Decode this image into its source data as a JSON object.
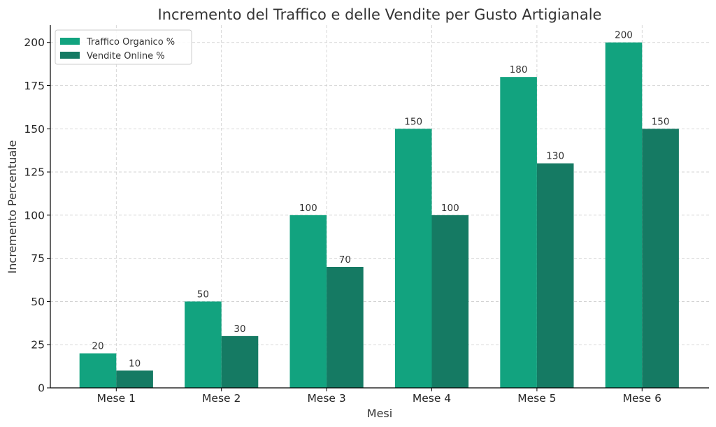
{
  "chart_data": {
    "type": "bar",
    "title": "Incremento del Traffico e delle Vendite per Gusto Artigianale",
    "xlabel": "Mesi",
    "ylabel": "Incremento Percentuale",
    "categories": [
      "Mese 1",
      "Mese 2",
      "Mese 3",
      "Mese 4",
      "Mese 5",
      "Mese 6"
    ],
    "series": [
      {
        "name": "Traffico Organico %",
        "values": [
          20,
          50,
          100,
          150,
          180,
          200
        ],
        "color": "#12a37f"
      },
      {
        "name": "Vendite Online %",
        "values": [
          10,
          30,
          70,
          100,
          130,
          150
        ],
        "color": "#157a63"
      }
    ],
    "ylim": [
      0,
      210
    ],
    "yticks": [
      0,
      25,
      50,
      75,
      100,
      125,
      150,
      175,
      200
    ],
    "grid": true,
    "legend_position": "top-left",
    "data_labels": true
  }
}
